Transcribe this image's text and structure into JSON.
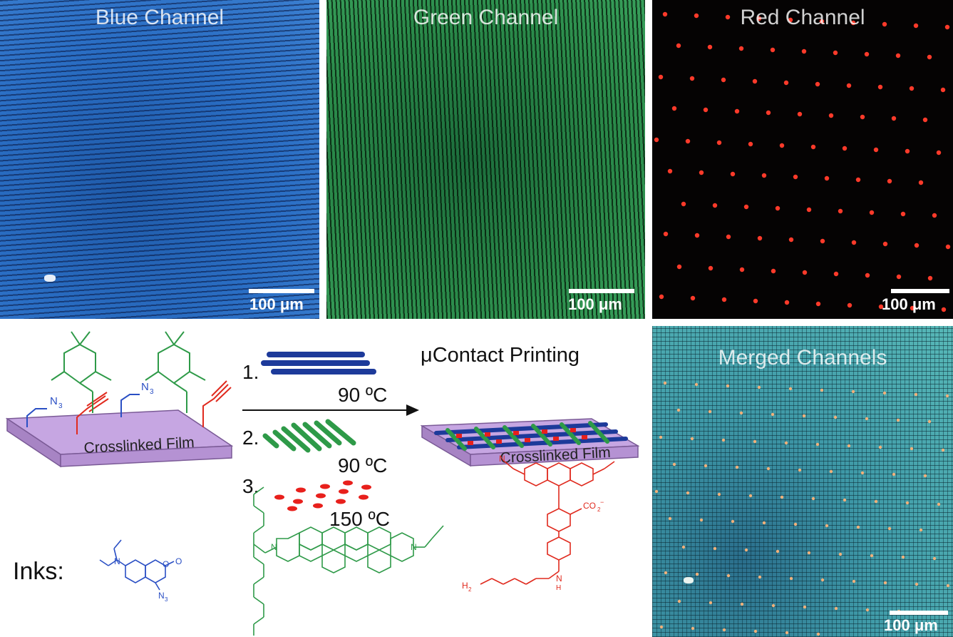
{
  "panels": {
    "blue": {
      "title": "Blue Channel",
      "scale": "100 μm"
    },
    "green": {
      "title": "Green Channel",
      "scale": "100 μm"
    },
    "red": {
      "title": "Red Channel",
      "scale": "100 μm"
    },
    "merged": {
      "title": "Merged Channels",
      "scale": "100 μm"
    }
  },
  "scheme": {
    "heading": "μContact Printing",
    "film_left": "Crosslinked Film",
    "film_right": "Crosslinked Film",
    "steps": [
      {
        "num": "1.",
        "temp": "90 ºC"
      },
      {
        "num": "2.",
        "temp": "90 ºC"
      },
      {
        "num": "3.",
        "temp": "150 ºC"
      }
    ],
    "azide_label": "N",
    "azide_sub": "3"
  },
  "inks": {
    "label": "Inks:",
    "coumarin_azide": "N",
    "coumarin_azide_sub": "3",
    "coumarin_n": "N",
    "coumarin_o": "O",
    "coumarin_o2": "O",
    "perylene_n1": "N",
    "perylene_n2": "N",
    "rhodamine_co2": "CO",
    "rhodamine_co2_sub": "2",
    "rhodamine_co2_sup": "−",
    "rhodamine_h2n": "H",
    "rhodamine_h2n_sub": "2",
    "rhodamine_n": "N",
    "rhodamine_nh": "N",
    "rhodamine_h": "H"
  },
  "colors": {
    "blue": "#2a5ad0",
    "green": "#2e9a48",
    "red": "#e8201c",
    "film": "#c8a8e0"
  }
}
